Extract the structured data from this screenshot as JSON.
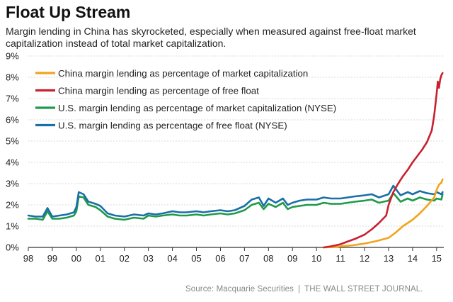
{
  "header": {
    "title": "Float Up Stream",
    "subtitle": "Margin lending in China has skyrocketed, especially when measured against free-float market capitalization instead of total market capitalization."
  },
  "footer": {
    "source": "Source: Macquarie Securities",
    "separator": "|",
    "publisher": "THE WALL STREET JOURNAL."
  },
  "chart_data": {
    "type": "line",
    "title": "Float Up Stream",
    "xlabel": "",
    "ylabel": "",
    "x_range": [
      1998,
      2015.3
    ],
    "ylim": [
      0,
      9
    ],
    "x_tick_labels": [
      "98",
      "99",
      "00",
      "01",
      "02",
      "03",
      "04",
      "05",
      "06",
      "07",
      "08",
      "09",
      "10",
      "11",
      "12",
      "13",
      "14",
      "15"
    ],
    "x_tick_values": [
      1998,
      1999,
      2000,
      2001,
      2002,
      2003,
      2004,
      2005,
      2006,
      2007,
      2008,
      2009,
      2010,
      2011,
      2012,
      2013,
      2014,
      2015
    ],
    "y_tick_labels": [
      "0%",
      "1%",
      "2%",
      "3%",
      "4%",
      "5%",
      "6%",
      "7%",
      "8%",
      "9%"
    ],
    "y_tick_values": [
      0,
      1,
      2,
      3,
      4,
      5,
      6,
      7,
      8,
      9
    ],
    "grid": "horizontal",
    "legend_position": "top-left",
    "series": [
      {
        "name": "China margin lending as percentage of market capitalization",
        "color": "#f2a31b",
        "x": [
          2010.3,
          2010.8,
          2011.0,
          2011.5,
          2012.0,
          2012.5,
          2013.0,
          2013.3,
          2013.6,
          2014.0,
          2014.3,
          2014.6,
          2014.9,
          2015.0,
          2015.1,
          2015.2,
          2015.25
        ],
        "y": [
          0.0,
          0.02,
          0.05,
          0.1,
          0.18,
          0.3,
          0.45,
          0.7,
          1.0,
          1.3,
          1.6,
          1.95,
          2.35,
          2.7,
          2.95,
          3.05,
          3.2
        ]
      },
      {
        "name": "China margin lending as percentage of free float",
        "color": "#c8202f",
        "x": [
          2010.3,
          2010.6,
          2011.0,
          2011.3,
          2011.6,
          2012.0,
          2012.3,
          2012.6,
          2012.9,
          2013.0,
          2013.2,
          2013.4,
          2013.6,
          2013.8,
          2014.0,
          2014.2,
          2014.4,
          2014.6,
          2014.8,
          2014.9,
          2015.0,
          2015.05,
          2015.1,
          2015.15,
          2015.2,
          2015.25
        ],
        "y": [
          0.0,
          0.05,
          0.15,
          0.28,
          0.4,
          0.6,
          0.85,
          1.15,
          1.5,
          2.0,
          2.6,
          3.0,
          3.35,
          3.65,
          4.0,
          4.3,
          4.6,
          4.95,
          5.5,
          6.2,
          7.2,
          7.8,
          7.5,
          7.9,
          8.1,
          8.2
        ]
      },
      {
        "name": "U.S. margin lending  as percentage of market capitalization (NYSE)",
        "color": "#1f9a4a",
        "x": [
          1998.0,
          1998.3,
          1998.6,
          1998.8,
          1999.0,
          1999.3,
          1999.6,
          1999.9,
          2000.0,
          2000.1,
          2000.3,
          2000.5,
          2000.8,
          2001.0,
          2001.3,
          2001.6,
          2002.0,
          2002.4,
          2002.8,
          2003.0,
          2003.3,
          2003.6,
          2004.0,
          2004.3,
          2004.6,
          2005.0,
          2005.3,
          2005.6,
          2006.0,
          2006.3,
          2006.6,
          2007.0,
          2007.3,
          2007.6,
          2007.8,
          2008.0,
          2008.3,
          2008.6,
          2008.8,
          2009.0,
          2009.3,
          2009.6,
          2010.0,
          2010.3,
          2010.6,
          2011.0,
          2011.3,
          2011.6,
          2012.0,
          2012.3,
          2012.6,
          2013.0,
          2013.2,
          2013.5,
          2013.8,
          2014.0,
          2014.3,
          2014.6,
          2014.9,
          2015.0,
          2015.2,
          2015.25
        ],
        "y": [
          1.35,
          1.35,
          1.3,
          1.7,
          1.35,
          1.35,
          1.4,
          1.5,
          1.7,
          2.4,
          2.35,
          2.0,
          1.9,
          1.75,
          1.45,
          1.35,
          1.3,
          1.4,
          1.35,
          1.5,
          1.45,
          1.5,
          1.55,
          1.5,
          1.5,
          1.55,
          1.5,
          1.55,
          1.6,
          1.55,
          1.6,
          1.75,
          2.0,
          2.1,
          1.8,
          2.05,
          1.9,
          2.1,
          1.8,
          1.9,
          1.95,
          2.0,
          2.0,
          2.1,
          2.05,
          2.05,
          2.1,
          2.15,
          2.2,
          2.25,
          2.1,
          2.2,
          2.55,
          2.15,
          2.3,
          2.2,
          2.35,
          2.25,
          2.2,
          2.3,
          2.25,
          2.5
        ]
      },
      {
        "name": "U.S. margin lending as percentage of free float (NYSE)",
        "color": "#1a6fa8",
        "x": [
          1998.0,
          1998.3,
          1998.6,
          1998.8,
          1999.0,
          1999.3,
          1999.6,
          1999.9,
          2000.0,
          2000.1,
          2000.3,
          2000.5,
          2000.8,
          2001.0,
          2001.3,
          2001.6,
          2002.0,
          2002.4,
          2002.8,
          2003.0,
          2003.3,
          2003.6,
          2004.0,
          2004.3,
          2004.6,
          2005.0,
          2005.3,
          2005.6,
          2006.0,
          2006.3,
          2006.6,
          2007.0,
          2007.3,
          2007.6,
          2007.8,
          2008.0,
          2008.3,
          2008.6,
          2008.8,
          2009.0,
          2009.3,
          2009.6,
          2010.0,
          2010.3,
          2010.6,
          2011.0,
          2011.3,
          2011.6,
          2012.0,
          2012.3,
          2012.6,
          2013.0,
          2013.2,
          2013.5,
          2013.8,
          2014.0,
          2014.3,
          2014.6,
          2014.9,
          2015.0,
          2015.2,
          2015.25
        ],
        "y": [
          1.5,
          1.45,
          1.45,
          1.85,
          1.45,
          1.5,
          1.55,
          1.65,
          1.9,
          2.6,
          2.5,
          2.15,
          2.05,
          1.95,
          1.6,
          1.5,
          1.45,
          1.55,
          1.5,
          1.6,
          1.55,
          1.6,
          1.7,
          1.65,
          1.65,
          1.7,
          1.65,
          1.7,
          1.75,
          1.7,
          1.75,
          1.95,
          2.25,
          2.35,
          1.95,
          2.3,
          2.1,
          2.3,
          2.0,
          2.1,
          2.2,
          2.25,
          2.25,
          2.35,
          2.3,
          2.3,
          2.35,
          2.4,
          2.45,
          2.5,
          2.35,
          2.5,
          2.9,
          2.45,
          2.6,
          2.5,
          2.65,
          2.55,
          2.5,
          2.6,
          2.5,
          2.6
        ]
      }
    ]
  }
}
